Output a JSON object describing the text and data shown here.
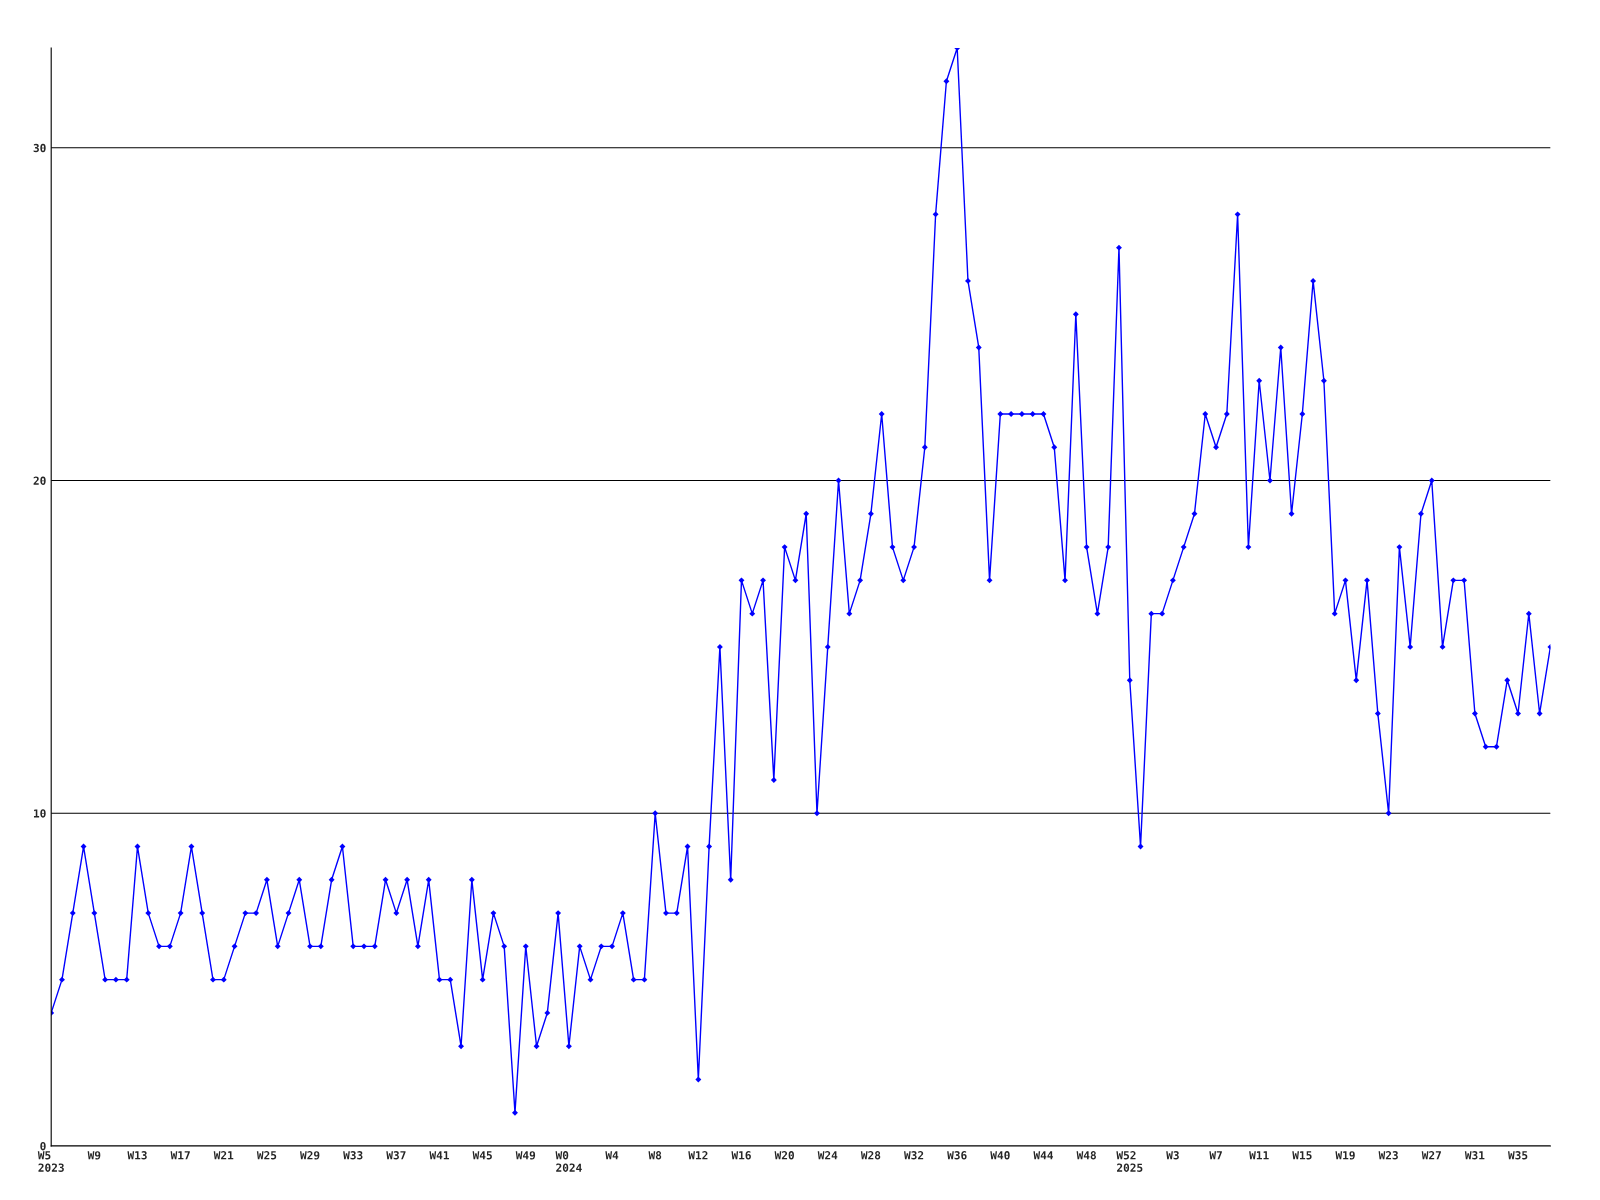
{
  "chart_data": {
    "type": "line",
    "categories": [
      "W5\n2023",
      null,
      null,
      null,
      "W9",
      null,
      null,
      null,
      "W13",
      null,
      null,
      null,
      "W17",
      null,
      null,
      null,
      "W21",
      null,
      null,
      null,
      "W25",
      null,
      null,
      null,
      "W29",
      null,
      null,
      null,
      "W33",
      null,
      null,
      null,
      "W37",
      null,
      null,
      null,
      "W41",
      null,
      null,
      null,
      "W45",
      null,
      null,
      null,
      "W49",
      null,
      null,
      null,
      "W0\n2024",
      null,
      null,
      null,
      "W4",
      null,
      null,
      null,
      "W8",
      null,
      null,
      null,
      "W12",
      null,
      null,
      null,
      "W16",
      null,
      null,
      null,
      "W20",
      null,
      null,
      null,
      "W24",
      null,
      null,
      null,
      "W28",
      null,
      null,
      null,
      "W32",
      null,
      null,
      null,
      "W36",
      null,
      null,
      null,
      "W40",
      null,
      null,
      null,
      "W44",
      null,
      null,
      null,
      "W48",
      null,
      null,
      null,
      "W52\n2025",
      null,
      null,
      null,
      "W3",
      null,
      null,
      null,
      "W7",
      null,
      null,
      null,
      "W11",
      null,
      null,
      null,
      "W15",
      null,
      null,
      null,
      "W19",
      null,
      null,
      null,
      "W23",
      null,
      null,
      null,
      "W27",
      null,
      null,
      null,
      "W31",
      null,
      null,
      null,
      "W35",
      null,
      null,
      null
    ],
    "series": [
      {
        "color": "#0000ff",
        "values": [
          4,
          5,
          7,
          9,
          7,
          5,
          5,
          5,
          9,
          7,
          6,
          6,
          7,
          9,
          7,
          5,
          5,
          6,
          7,
          7,
          8,
          6,
          7,
          8,
          6,
          6,
          8,
          9,
          6,
          6,
          6,
          8,
          7,
          8,
          6,
          8,
          5,
          5,
          3,
          8,
          5,
          7,
          6,
          1,
          6,
          3,
          4,
          7,
          3,
          6,
          5,
          6,
          6,
          7,
          5,
          5,
          10,
          7,
          7,
          9,
          2,
          9,
          15,
          8,
          17,
          16,
          17,
          11,
          18,
          17,
          19,
          10,
          15,
          20,
          16,
          17,
          19,
          22,
          18,
          17,
          18,
          21,
          28,
          32,
          33,
          26,
          24,
          17,
          22,
          22,
          22,
          22,
          22,
          21,
          17,
          25,
          18,
          16,
          18,
          27,
          14,
          9,
          16,
          16,
          17,
          18,
          19,
          22,
          21,
          22,
          28,
          18,
          23,
          20,
          24,
          19,
          22,
          26,
          23,
          16,
          17,
          14,
          17,
          13,
          10,
          18,
          15,
          19,
          20,
          15,
          17,
          17,
          13,
          12,
          12,
          14,
          13,
          16,
          13,
          15
        ]
      }
    ],
    "ylim": [
      0,
      33
    ],
    "yticks": [
      0,
      10,
      20,
      30
    ],
    "grid": "y",
    "marker": "diamond",
    "line_style": "solid"
  }
}
